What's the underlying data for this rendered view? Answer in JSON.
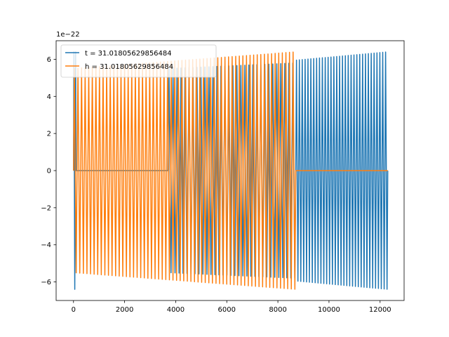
{
  "chart_data": {
    "type": "line",
    "title": "",
    "xlabel": "",
    "ylabel": "",
    "y_scale_label": "1e−22",
    "xlim": [
      -680,
      12940
    ],
    "ylim": [
      -7.0,
      7.0
    ],
    "x_ticks": [
      0,
      2000,
      4000,
      6000,
      8000,
      10000,
      12000
    ],
    "x_tick_labels": [
      "0",
      "2000",
      "4000",
      "6000",
      "8000",
      "10000",
      "12000"
    ],
    "y_ticks": [
      -6,
      -4,
      -2,
      0,
      2,
      4,
      6
    ],
    "y_tick_labels": [
      "−6",
      "−4",
      "−2",
      "0",
      "2",
      "4",
      "6"
    ],
    "grid": false,
    "legend_position": "upper left",
    "series": [
      {
        "name": "t = 31.01805629856484",
        "color": "#1f77b4",
        "segments": [
          {
            "x_start": 0,
            "x_end": 100,
            "amplitude_start": 6.4,
            "amplitude_end": 6.4,
            "cycles": 1.5
          },
          {
            "x_start": 100,
            "x_end": 3700,
            "amplitude_start": 0.0,
            "amplitude_end": 0.0,
            "cycles": 0
          },
          {
            "x_start": 3700,
            "x_end": 8700,
            "amplitude_start": 5.5,
            "amplitude_end": 5.8,
            "cycles": 32
          },
          {
            "x_start": 8700,
            "x_end": 12300,
            "amplitude_start": 5.95,
            "amplitude_end": 6.4,
            "cycles": 32
          }
        ]
      },
      {
        "name": "h = 31.01805629856484",
        "color": "#ff7f0e",
        "segments": [
          {
            "x_start": 0,
            "x_end": 8700,
            "amplitude_start": 5.5,
            "amplitude_end": 6.4,
            "cycles": 62
          },
          {
            "x_start": 8700,
            "x_end": 12300,
            "amplitude_start": 0.0,
            "amplitude_end": 0.0,
            "cycles": 0
          }
        ]
      }
    ]
  }
}
